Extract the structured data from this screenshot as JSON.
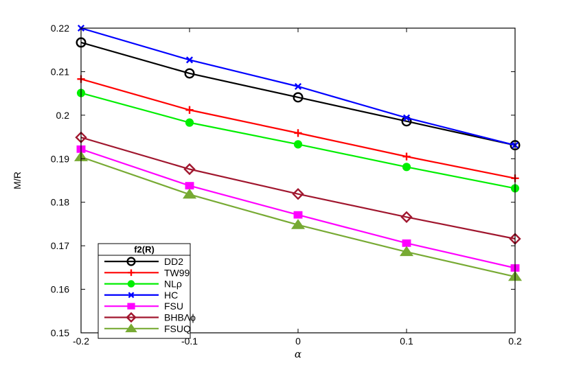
{
  "chart_data": {
    "type": "line",
    "xlabel": "α",
    "ylabel": "M/R",
    "xlim": [
      -0.2,
      0.2
    ],
    "ylim": [
      0.15,
      0.22
    ],
    "x": [
      -0.2,
      -0.1,
      0,
      0.1,
      0.2
    ],
    "x_tick_labels": [
      "-0.2",
      "-0.1",
      "0",
      "0.1",
      "0.2"
    ],
    "y_ticks": [
      0.15,
      0.16,
      0.17,
      0.18,
      0.19,
      0.2,
      0.21,
      0.22
    ],
    "y_tick_labels": [
      "0.15",
      "0.16",
      "0.17",
      "0.18",
      "0.19",
      "0.2",
      "0.21",
      "0.22"
    ],
    "grid": false,
    "legend": {
      "title": "f2(R)",
      "placement": "bottom-left"
    },
    "series": [
      {
        "name": "DD2",
        "color": "#000000",
        "marker": "circle-open",
        "values": [
          0.2167,
          0.2096,
          0.2041,
          0.1986,
          0.1931
        ]
      },
      {
        "name": "TW99",
        "color": "#ff0000",
        "marker": "plus",
        "values": [
          0.2083,
          0.2012,
          0.1959,
          0.1905,
          0.1855
        ]
      },
      {
        "name": "NLρ",
        "color": "#00ee00",
        "marker": "circle-filled",
        "values": [
          0.2051,
          0.1983,
          0.1933,
          0.1881,
          0.1832
        ]
      },
      {
        "name": "HC",
        "color": "#0000ff",
        "marker": "cross",
        "values": [
          0.22,
          0.2127,
          0.2066,
          0.1994,
          0.1931
        ]
      },
      {
        "name": "FSU",
        "color": "#ff00ff",
        "marker": "square",
        "values": [
          0.1922,
          0.1838,
          0.1771,
          0.1706,
          0.1649
        ]
      },
      {
        "name": "BHBΛϕ",
        "color": "#a0162e",
        "marker": "diamond-open",
        "values": [
          0.1949,
          0.1876,
          0.1819,
          0.1766,
          0.1716
        ]
      },
      {
        "name": "FSUQ",
        "color": "#77aa33",
        "marker": "triangle",
        "values": [
          0.1904,
          0.1818,
          0.1748,
          0.1686,
          0.1629
        ]
      }
    ]
  }
}
